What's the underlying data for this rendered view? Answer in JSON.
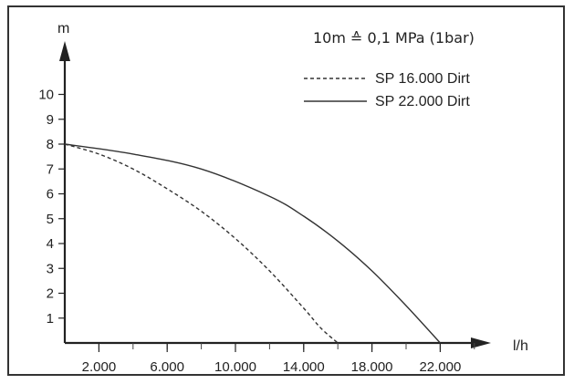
{
  "chart_data": {
    "type": "line",
    "title": "",
    "annotation": "10m ≙ 0,1 MPa (1bar)",
    "xlabel": "l/h",
    "ylabel": "m",
    "xlim": [
      0,
      26000
    ],
    "ylim": [
      0,
      11
    ],
    "x_ticks": [
      2000,
      6000,
      10000,
      14000,
      18000,
      22000
    ],
    "x_tick_labels": [
      "2.000",
      "6.000",
      "10.000",
      "14.000",
      "18.000",
      "22.000"
    ],
    "y_ticks": [
      1,
      2,
      3,
      4,
      5,
      6,
      7,
      8,
      9,
      10
    ],
    "y_tick_labels": [
      "1",
      "2",
      "3",
      "4",
      "5",
      "6",
      "7",
      "8",
      "9",
      "10"
    ],
    "grid": false,
    "legend_position": "top-right",
    "series": [
      {
        "name": "SP 16.000 Dirt",
        "style": "dashed",
        "x": [
          0,
          2000,
          4000,
          6000,
          8000,
          10000,
          12000,
          14000,
          15000,
          16000
        ],
        "y": [
          8.0,
          7.6,
          7.0,
          6.2,
          5.3,
          4.2,
          2.9,
          1.4,
          0.6,
          0.0
        ]
      },
      {
        "name": "SP 22.000 Dirt",
        "style": "solid",
        "x": [
          0,
          4000,
          8000,
          12000,
          14000,
          16000,
          18000,
          20000,
          22000
        ],
        "y": [
          8.0,
          7.6,
          7.0,
          5.9,
          5.1,
          4.1,
          2.9,
          1.5,
          0.0
        ]
      }
    ]
  }
}
